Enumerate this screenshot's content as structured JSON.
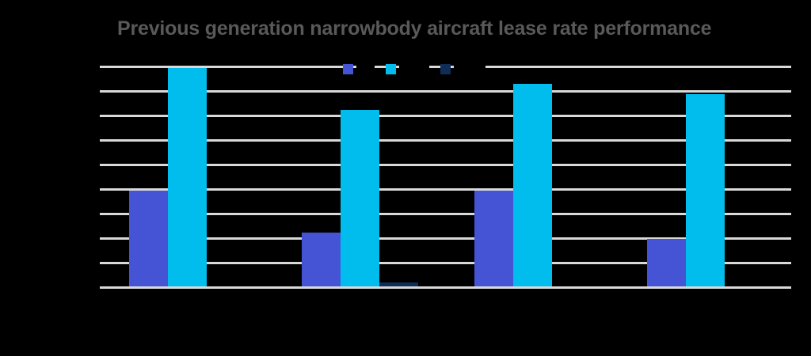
{
  "page": {
    "background_color": "#000000"
  },
  "title": {
    "text": "Previous generation narrowbody aircraft lease rate performance",
    "color": "#59595b"
  },
  "legend": {
    "label_color": "#000000",
    "items": [
      {
        "label": "",
        "swatch_color": "#4454d4"
      },
      {
        "label": "",
        "swatch_color": "#00bdee"
      },
      {
        "label": "",
        "swatch_color": "#0f2d57"
      }
    ]
  },
  "chart_data": {
    "type": "bar",
    "title": "Previous generation narrowbody aircraft lease rate performance",
    "categories": [
      "",
      "",
      "",
      ""
    ],
    "series": [
      {
        "name": "",
        "color": "#4454d4",
        "values": [
          3.9,
          2.2,
          3.9,
          1.95
        ]
      },
      {
        "name": "",
        "color": "#00bdee",
        "values": [
          8.9,
          7.2,
          8.25,
          7.85
        ]
      },
      {
        "name": "",
        "color": "#0f2d57",
        "values": [
          0,
          0.15,
          0,
          0
        ]
      }
    ],
    "ylim": [
      0,
      9
    ],
    "gridlines": {
      "count": 10,
      "color": "#d9d9d9",
      "orientation": "horizontal"
    },
    "grid": true,
    "legend_position": "top-center",
    "note": "Legend labels, y-axis tick labels and x-axis category labels are rendered in black and are not legible against the black background; bar values are estimated in gridline units (9 equal intervals from baseline to top gridline)."
  }
}
